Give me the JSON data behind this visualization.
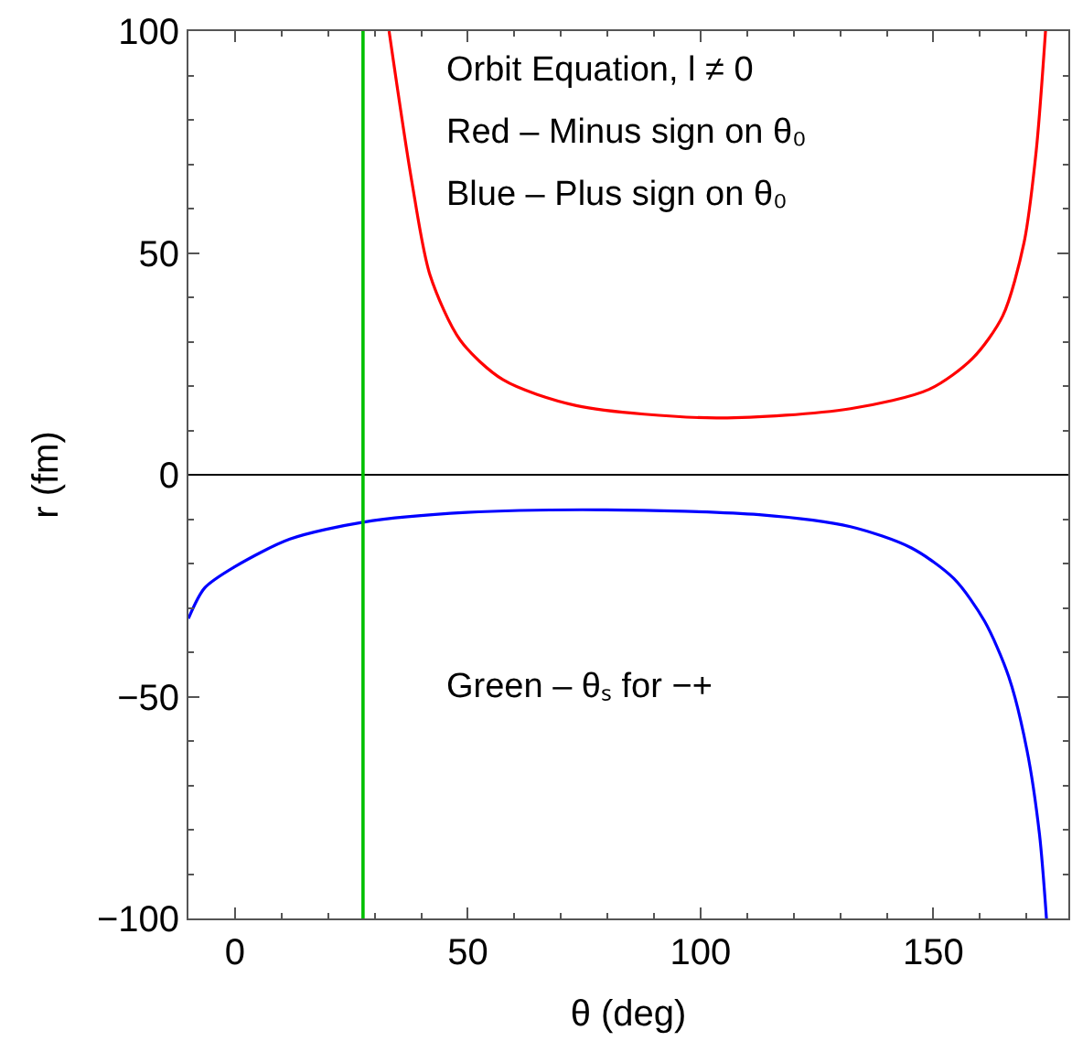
{
  "chart_data": {
    "type": "line",
    "xlabel": "θ (deg)",
    "ylabel": "r (fm)",
    "xlim": [
      -10,
      179
    ],
    "ylim": [
      -100,
      100
    ],
    "xticks": [
      0,
      50,
      100,
      150
    ],
    "yticks": [
      -100,
      -50,
      0,
      50,
      100
    ],
    "marker": "none",
    "line_style": "solid",
    "series": [
      {
        "color": "#ff0000",
        "x": [
          33.1,
          38.0,
          41.9,
          48.4,
          57.6,
          73.3,
          103.4,
          132.2,
          149.2,
          158.4,
          164.9,
          169.5,
          172.1,
          174.1
        ],
        "values": [
          100,
          66,
          45,
          30.3,
          21.4,
          15.6,
          12.8,
          14.9,
          19.3,
          26.2,
          35.8,
          52.4,
          73,
          100
        ]
      },
      {
        "color": "#0000ff",
        "x": [
          -10,
          -6.5,
          0,
          11.8,
          27.5,
          49.7,
          79.8,
          112.6,
          132.2,
          145.3,
          154.4,
          161,
          166.2,
          170.1,
          172.8,
          174.3
        ],
        "values": [
          -32.4,
          -25.5,
          -20.7,
          -14.5,
          -10.7,
          -8.5,
          -7.9,
          -9.0,
          -11.7,
          -16.5,
          -23.4,
          -33,
          -45.5,
          -62,
          -81,
          -100
        ]
      }
    ],
    "ref_lines": [
      {
        "axis": "y",
        "value": 0,
        "color": "#000000"
      },
      {
        "axis": "x",
        "value": 27.5,
        "color": "#00c000"
      }
    ],
    "annotations": [
      "Orbit Equation, l ≠ 0",
      "Red – Minus sign on θ₀",
      "Blue – Plus sign on θ₀",
      "Green – θₛ for −+"
    ]
  }
}
